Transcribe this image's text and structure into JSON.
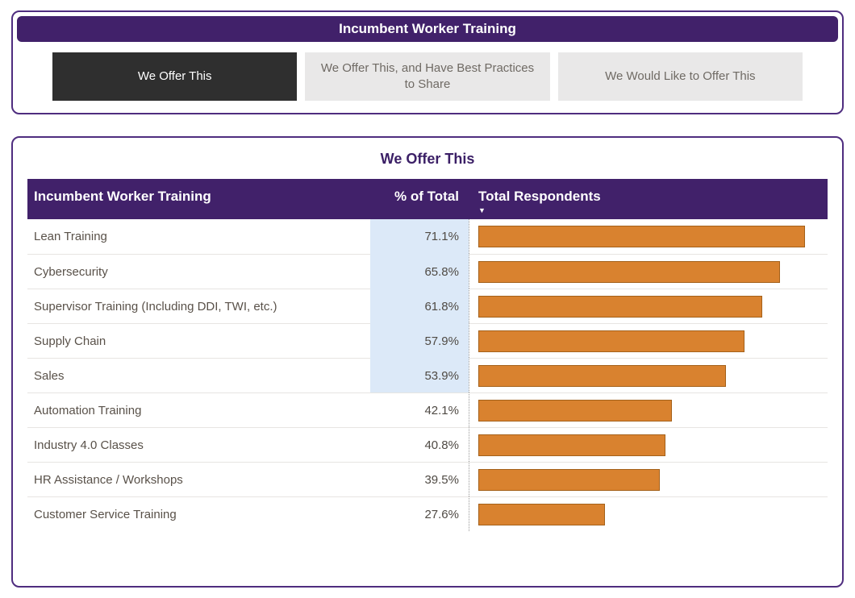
{
  "filter": {
    "title": "Incumbent Worker Training",
    "tabs": [
      {
        "label": "We Offer This",
        "selected": true
      },
      {
        "label": "We Offer This, and Have Best Practices to Share",
        "selected": false
      },
      {
        "label": "We Would Like to Offer This",
        "selected": false
      }
    ]
  },
  "table": {
    "title": "We Offer This",
    "columns": [
      "Incumbent Worker Training",
      "% of Total",
      "Total Respondents"
    ],
    "sort_icon": "▼",
    "sort_column": "Total Respondents",
    "sort_direction": "descending"
  },
  "colors": {
    "header_purple": "#41216a",
    "card_border_purple": "#4f2d7f",
    "bar_orange": "#d9822f",
    "bar_border_orange": "#a4611a",
    "highlight_blue": "#dce9f8",
    "selected_tab": "#2f2f2f"
  },
  "chart_data": {
    "type": "bar",
    "orientation": "horizontal",
    "title": "We Offer This",
    "categories": [
      "Lean Training",
      "Cybersecurity",
      "Supervisor Training (Including DDI, TWI, etc.)",
      "Supply Chain",
      "Sales",
      "Automation Training",
      "Industry 4.0 Classes",
      "HR Assistance / Workshops",
      "Customer Service Training"
    ],
    "values": [
      71.1,
      65.8,
      61.8,
      57.9,
      53.9,
      42.1,
      40.8,
      39.5,
      27.6
    ],
    "value_labels": [
      "71.1%",
      "65.8%",
      "61.8%",
      "57.9%",
      "53.9%",
      "42.1%",
      "40.8%",
      "39.5%",
      "27.6%"
    ],
    "highlighted": [
      true,
      true,
      true,
      true,
      true,
      false,
      false,
      false,
      false
    ],
    "xlabel": "Total Respondents",
    "ylabel": "Incumbent Worker Training",
    "xlim": [
      0,
      75
    ],
    "legend": "none",
    "grid": "off"
  }
}
